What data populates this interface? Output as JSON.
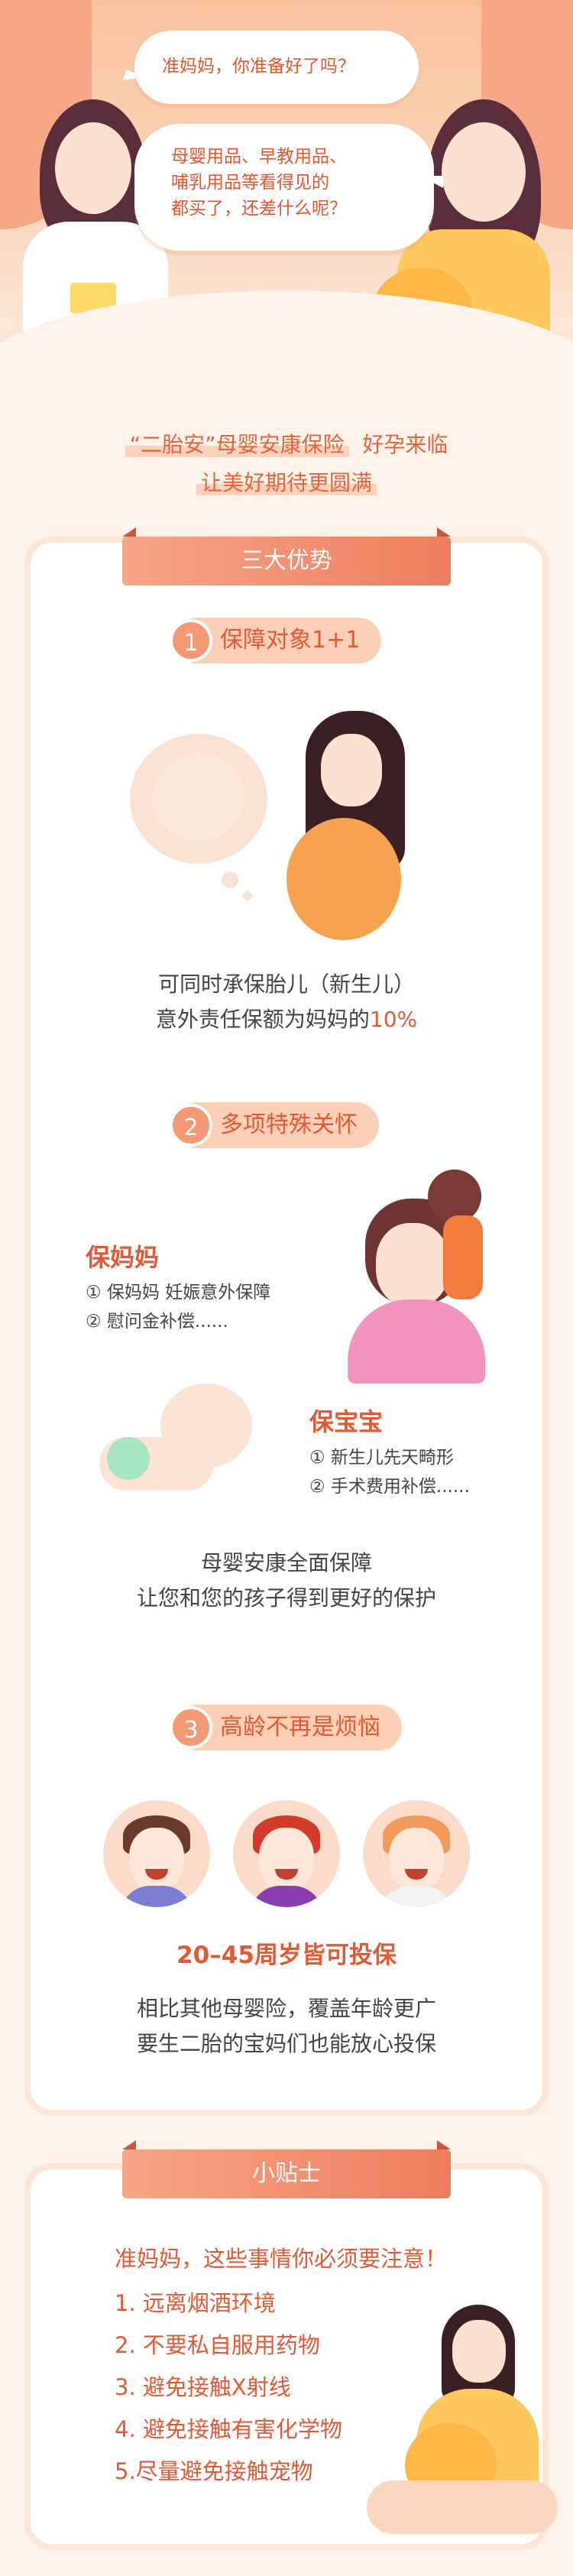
{
  "hero": {
    "bubble1": "准妈妈，你准备好了吗？",
    "bubble2_lines": [
      "母婴用品、早教用品、",
      "哺乳用品等看得见的",
      "都买了，还差什么呢？"
    ]
  },
  "intro": {
    "line1_highlight": "“二胎安”母婴安康保险",
    "line1_tail": "  好孕来临",
    "line2": "让美好期待更圆满"
  },
  "advantages": {
    "ribbon": "三大优势",
    "item1": {
      "num": "1",
      "title": "保障对象1+1",
      "text_line1": "可同时承保胎儿（新生儿）",
      "text_line2_pre": "意外责任保额为妈妈的",
      "text_line2_red": "10%"
    },
    "item2": {
      "num": "2",
      "title": "多项特殊关怀",
      "mom_title": "保妈妈",
      "mom_lines": [
        "① 保妈妈 妊娠意外保障",
        "② 慰问金补偿......"
      ],
      "baby_title": "保宝宝",
      "baby_lines": [
        "① 新生儿先天畸形",
        "② 手术费用补偿......"
      ],
      "summary_line1": "母婴安康全面保障",
      "summary_line2": "让您和您的孩子得到更好的保护"
    },
    "item3": {
      "num": "3",
      "title": "高龄不再是烦恼",
      "age_title": "20–45周岁皆可投保",
      "text_line1": "相比其他母婴险，覆盖年龄更广",
      "text_line2": "要生二胎的宝妈们也能放心投保"
    }
  },
  "tips": {
    "ribbon": "小贴士",
    "headline": "准妈妈，这些事情你必须要注意！",
    "items": [
      "1. 远离烟酒环境",
      "2. 不要私自服用药物",
      "3. 避免接触X射线",
      "4. 避免接触有害化学物",
      "5.尽量避免接触宠物"
    ]
  },
  "colors": {
    "accent": "#e25a35",
    "ribbon": "#ee7c5f",
    "pill": "#fcd0b6",
    "background": "#fdf3ea"
  }
}
